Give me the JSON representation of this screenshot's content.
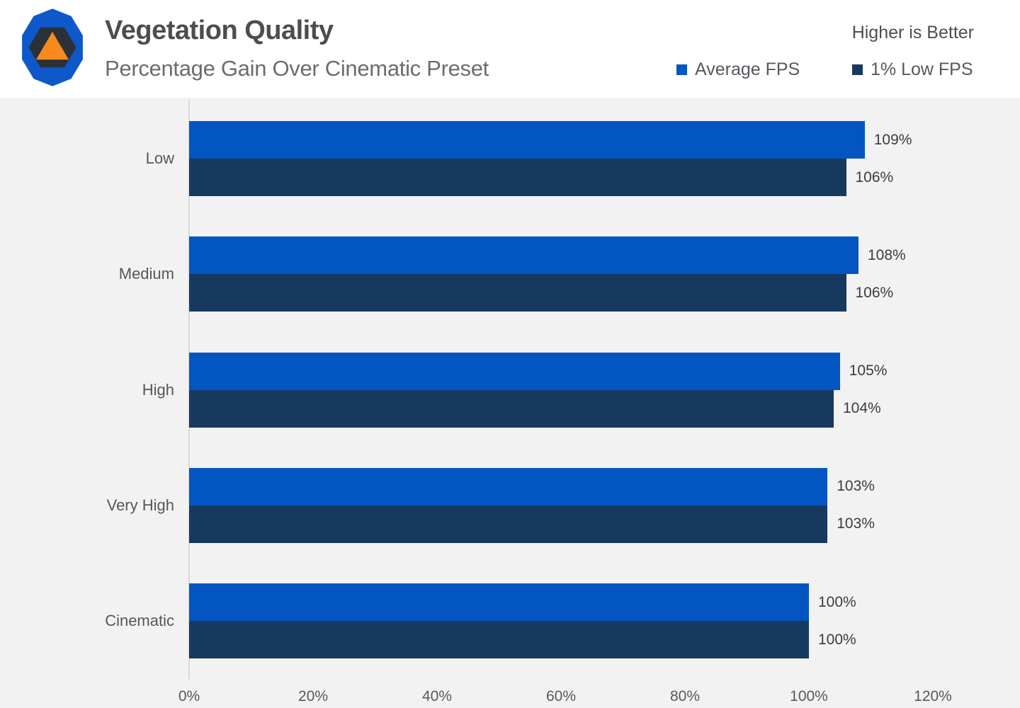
{
  "header": {
    "title": "Vegetation Quality",
    "subtitle": "Percentage Gain Over Cinematic Preset",
    "note": "Higher is Better",
    "logo": "techspot-style emblem: blue decagon, dark hexagon, orange triangle",
    "logo_colors": {
      "outer": "#0e58c9",
      "hexagon": "#2b3138",
      "triangle": "#f78a1c"
    }
  },
  "chart_data": {
    "type": "bar",
    "orientation": "horizontal",
    "title": "Vegetation Quality",
    "subtitle": "Percentage Gain Over Cinematic Preset",
    "annotation": "Higher is Better",
    "categories": [
      "Low",
      "Medium",
      "High",
      "Very High",
      "Cinematic"
    ],
    "series": [
      {
        "name": "Average FPS",
        "color": "#0356c1",
        "values": [
          109,
          108,
          105,
          103,
          100
        ]
      },
      {
        "name": "1% Low FPS",
        "color": "#17395f",
        "values": [
          106,
          106,
          104,
          103,
          100
        ]
      }
    ],
    "value_suffix": "%",
    "xlim": [
      0,
      120
    ],
    "xticks": [
      "0%",
      "20%",
      "40%",
      "60%",
      "80%",
      "100%",
      "120%"
    ],
    "grid": "off",
    "legend_position": "top-right",
    "background": "#f2f2f2"
  }
}
